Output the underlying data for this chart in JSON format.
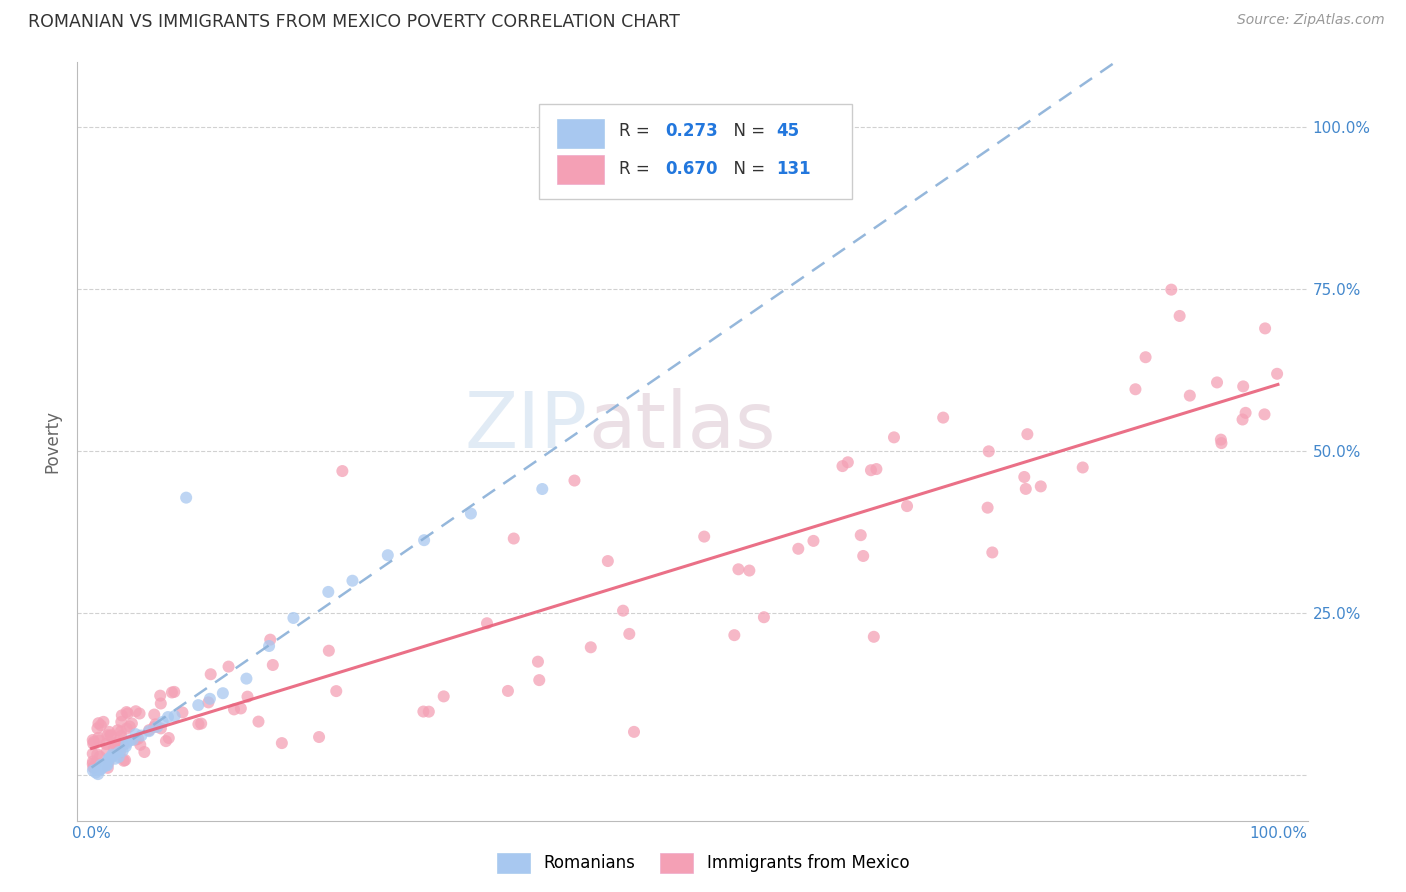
{
  "title": "ROMANIAN VS IMMIGRANTS FROM MEXICO POVERTY CORRELATION CHART",
  "source": "Source: ZipAtlas.com",
  "ylabel": "Poverty",
  "r1": 0.273,
  "n1": 45,
  "r2": 0.67,
  "n2": 131,
  "color_blue": "#a8c8f0",
  "color_pink": "#f4a0b5",
  "color_blue_line": "#8ab0d8",
  "color_pink_line": "#e8607a",
  "color_title": "#333333",
  "color_source": "#999999",
  "color_r_label": "#333333",
  "color_r_value": "#2277dd",
  "color_n_value": "#2277dd",
  "watermark_zip": "ZIP",
  "watermark_atlas": "atlas",
  "grid_color": "#cccccc",
  "background_color": "#ffffff",
  "legend_label1": "Romanians",
  "legend_label2": "Immigrants from Mexico"
}
